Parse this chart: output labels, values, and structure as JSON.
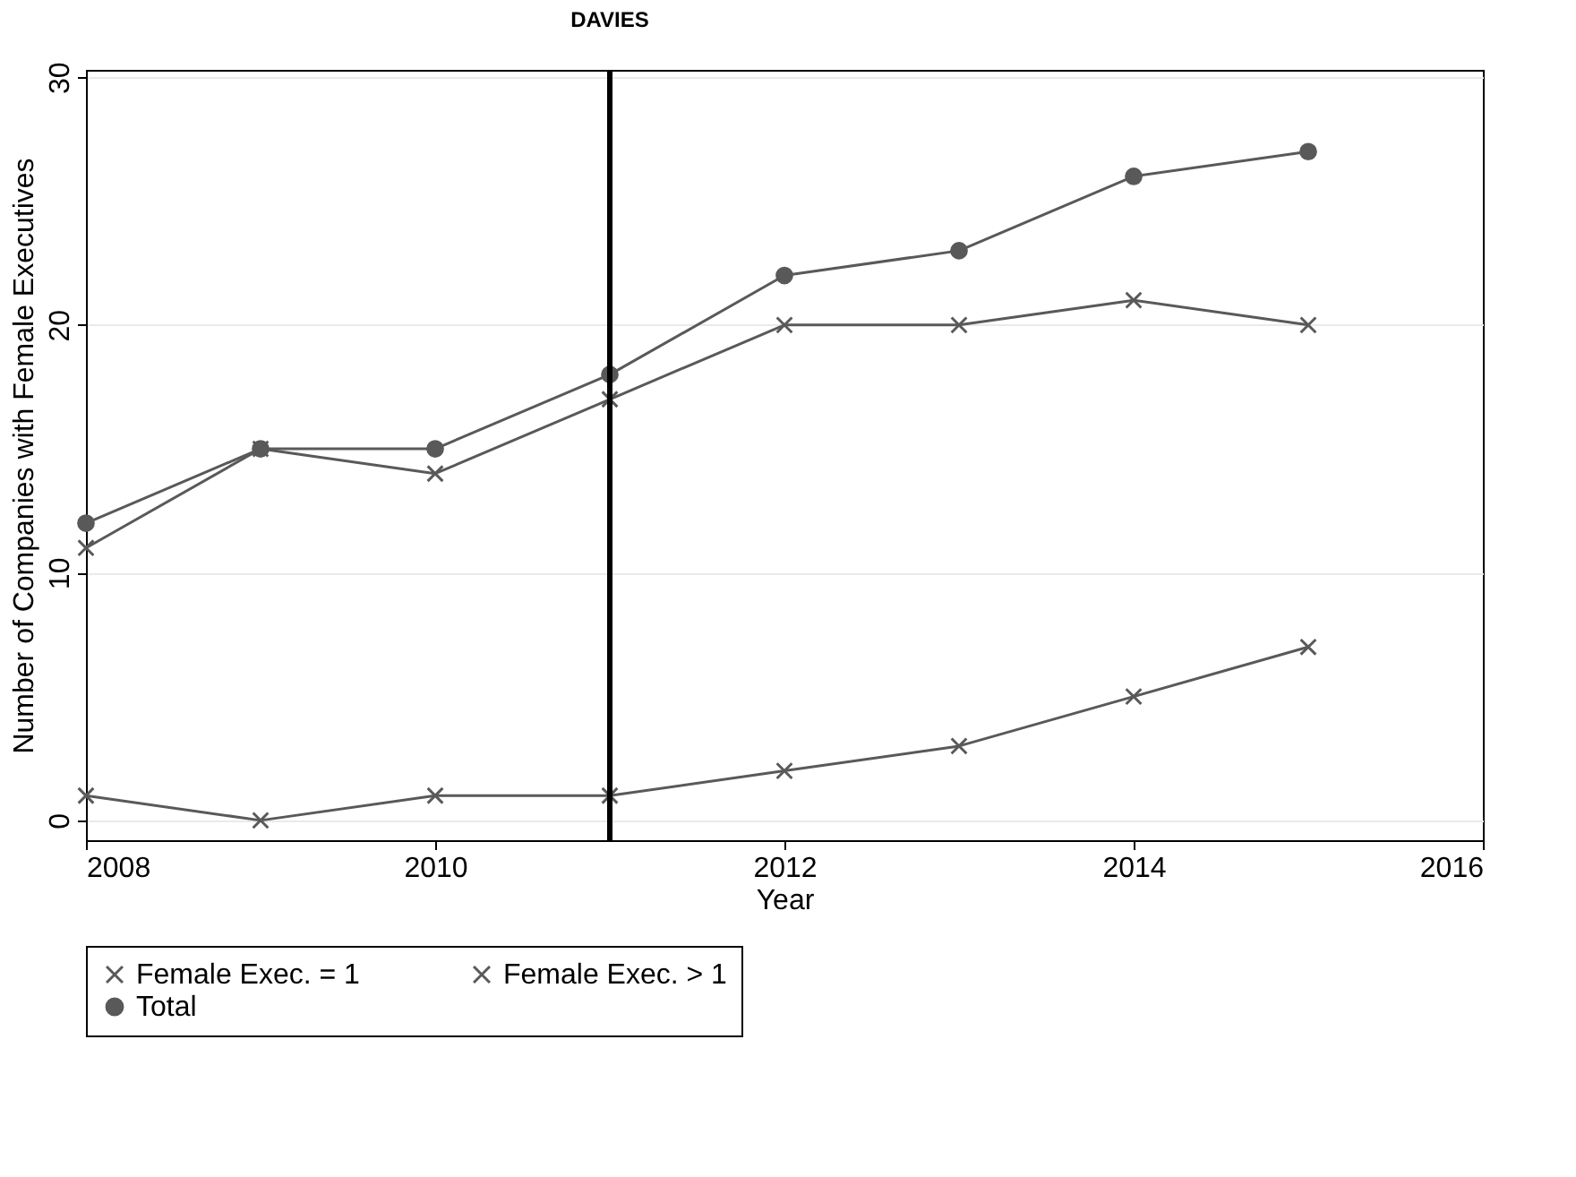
{
  "chart_data": {
    "type": "line",
    "xlabel": "Year",
    "ylabel": "Number of Companies with Female Executives",
    "x": [
      2008,
      2009,
      2010,
      2011,
      2012,
      2013,
      2014,
      2015
    ],
    "series": [
      {
        "name": "Female Exec. = 1",
        "color": "#595959",
        "marker": "cross",
        "values": [
          11,
          15,
          14,
          17,
          20,
          20,
          21,
          20
        ]
      },
      {
        "name": "Female Exec. > 1",
        "color": "#595959",
        "marker": "cross",
        "values": [
          1,
          0,
          1,
          1,
          2,
          3,
          5,
          7
        ]
      },
      {
        "name": "Total",
        "color": "#595959",
        "marker": "circle",
        "values": [
          12,
          15,
          15,
          18,
          22,
          23,
          26,
          27
        ]
      }
    ],
    "xlim": [
      2008,
      2016
    ],
    "xticks": [
      2008,
      2010,
      2012,
      2014,
      2016
    ],
    "ylim": [
      -0.8,
      30.3
    ],
    "yticks": [
      0,
      10,
      20,
      30
    ],
    "ref_lines": [
      {
        "axis": "x",
        "value": 2011,
        "label": "DAVIES",
        "color": "#000000"
      }
    ],
    "grid": "y",
    "legend": "bottom",
    "line_style": "solid"
  }
}
